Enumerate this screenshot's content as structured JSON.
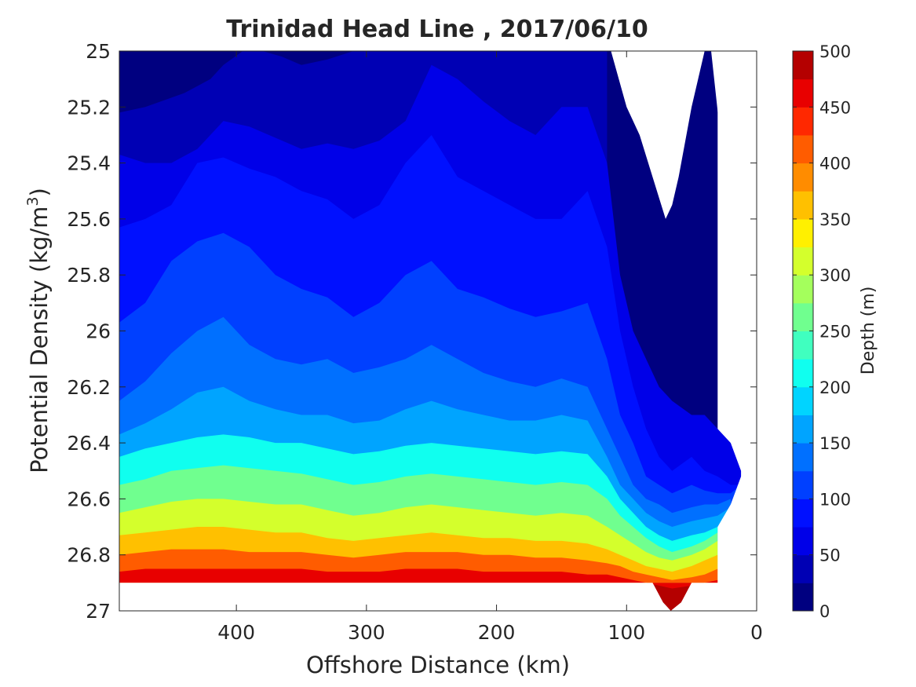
{
  "chart_data": {
    "type": "contour",
    "title": "Trinidad Head Line , 2017/06/10",
    "xlabel": "Offshore Distance (km)",
    "ylabel": "Potential Density (kg/m",
    "ylabel_sup": "3",
    "ylabel_end": ")",
    "xlim": [
      490,
      0
    ],
    "ylim": [
      25,
      27
    ],
    "x_reversed": true,
    "y_reversed": true,
    "x_ticks": [
      "400",
      "300",
      "200",
      "100",
      "0"
    ],
    "x_tick_values": [
      400,
      300,
      200,
      100,
      0
    ],
    "y_ticks": [
      "25",
      "25.2",
      "25.4",
      "25.6",
      "25.8",
      "26",
      "26.2",
      "26.4",
      "26.6",
      "26.8",
      "27"
    ],
    "y_tick_values": [
      25,
      25.2,
      25.4,
      25.6,
      25.8,
      26,
      26.2,
      26.4,
      26.6,
      26.8,
      27
    ],
    "colorbar": {
      "label": "Depth (m)",
      "range": [
        0,
        500
      ],
      "ticks": [
        "0",
        "50",
        "100",
        "150",
        "200",
        "250",
        "300",
        "350",
        "400",
        "450",
        "500"
      ],
      "tick_values": [
        0,
        50,
        100,
        150,
        200,
        250,
        300,
        350,
        400,
        450,
        500
      ],
      "level_step": 25,
      "colormap": "jet",
      "colors": [
        "#000080",
        "#0000b4",
        "#0000e8",
        "#0010ff",
        "#0040ff",
        "#0070ff",
        "#00a4ff",
        "#00d4ff",
        "#10ffef",
        "#40ffbf",
        "#70ff8f",
        "#a4ff5c",
        "#d4ff2c",
        "#fff000",
        "#ffc000",
        "#ff8c00",
        "#ff5c00",
        "#ff2800",
        "#e80000",
        "#b40000"
      ]
    },
    "grid": false,
    "bottom_contour_limit": 26.9,
    "contour_levels": [
      {
        "value": 25,
        "x": [
          490,
          470,
          440,
          420,
          410,
          395,
          380,
          365,
          350,
          330,
          310,
          290,
          270,
          250,
          230,
          210,
          190,
          170,
          150,
          130,
          115
        ],
        "y": [
          25.22,
          25.2,
          25.15,
          25.1,
          25.05,
          25.0,
          25.0,
          25.02,
          25.05,
          25.03,
          25.0,
          25.0,
          25.0,
          25.0,
          25.0,
          25.0,
          25.0,
          25.0,
          25.0,
          25.0,
          25.0
        ]
      },
      {
        "value": 50,
        "x": [
          490,
          470,
          450,
          430,
          410,
          390,
          370,
          350,
          330,
          310,
          290,
          270,
          250,
          230,
          210,
          190,
          170,
          150,
          130,
          115,
          105,
          95,
          85,
          75,
          65,
          50,
          40,
          30,
          20,
          12
        ],
        "y": [
          25.37,
          25.4,
          25.4,
          25.35,
          25.25,
          25.27,
          25.31,
          25.35,
          25.33,
          25.35,
          25.32,
          25.25,
          25.05,
          25.1,
          25.18,
          25.25,
          25.3,
          25.2,
          25.2,
          25.4,
          25.8,
          26.0,
          26.1,
          26.2,
          26.25,
          26.3,
          26.3,
          26.35,
          26.4,
          26.5
        ]
      },
      {
        "value": 75,
        "x": [
          490,
          470,
          450,
          430,
          410,
          390,
          370,
          350,
          330,
          310,
          290,
          270,
          250,
          230,
          210,
          190,
          170,
          150,
          130,
          115,
          105,
          95,
          85,
          75,
          65,
          50,
          40,
          30,
          20,
          12
        ],
        "y": [
          25.63,
          25.6,
          25.55,
          25.4,
          25.38,
          25.42,
          25.45,
          25.5,
          25.53,
          25.6,
          25.55,
          25.4,
          25.3,
          25.45,
          25.5,
          25.55,
          25.6,
          25.6,
          25.5,
          25.7,
          26.0,
          26.2,
          26.35,
          26.45,
          26.5,
          26.45,
          26.5,
          26.52,
          26.55,
          26.55
        ]
      },
      {
        "value": 100,
        "x": [
          490,
          470,
          450,
          430,
          410,
          390,
          370,
          350,
          330,
          310,
          290,
          270,
          250,
          230,
          210,
          190,
          170,
          150,
          130,
          115,
          105,
          95,
          85,
          75,
          65,
          50,
          40,
          30,
          20,
          12
        ],
        "y": [
          25.97,
          25.9,
          25.75,
          25.68,
          25.65,
          25.7,
          25.8,
          25.85,
          25.88,
          25.95,
          25.9,
          25.8,
          25.75,
          25.85,
          25.88,
          25.92,
          25.95,
          25.93,
          25.9,
          26.1,
          26.3,
          26.4,
          26.52,
          26.55,
          26.58,
          26.55,
          26.57,
          26.58,
          26.58,
          26.55
        ]
      },
      {
        "value": 125,
        "x": [
          490,
          470,
          450,
          430,
          410,
          390,
          370,
          350,
          330,
          310,
          290,
          270,
          250,
          230,
          210,
          190,
          170,
          150,
          130,
          115,
          105,
          95,
          85,
          75,
          65,
          50,
          40,
          30,
          20
        ],
        "y": [
          26.25,
          26.18,
          26.08,
          26.0,
          25.95,
          26.05,
          26.1,
          26.12,
          26.1,
          26.15,
          26.13,
          26.1,
          26.05,
          26.1,
          26.15,
          26.18,
          26.2,
          26.17,
          26.2,
          26.35,
          26.45,
          26.55,
          26.6,
          26.62,
          26.65,
          26.63,
          26.62,
          26.62,
          26.6
        ]
      },
      {
        "value": 150,
        "x": [
          490,
          470,
          450,
          430,
          410,
          390,
          370,
          350,
          330,
          310,
          290,
          270,
          250,
          230,
          210,
          190,
          170,
          150,
          130,
          115,
          105,
          95,
          85,
          75,
          65,
          50,
          40,
          30,
          20
        ],
        "y": [
          26.37,
          26.33,
          26.28,
          26.22,
          26.2,
          26.25,
          26.28,
          26.3,
          26.3,
          26.33,
          26.32,
          26.28,
          26.25,
          26.28,
          26.3,
          26.32,
          26.32,
          26.3,
          26.32,
          26.45,
          26.55,
          26.6,
          26.65,
          26.68,
          26.7,
          26.68,
          26.67,
          26.66,
          26.63
        ]
      },
      {
        "value": 200,
        "x": [
          490,
          470,
          450,
          430,
          410,
          390,
          370,
          350,
          330,
          310,
          290,
          270,
          250,
          230,
          210,
          190,
          170,
          150,
          130,
          115,
          105,
          95,
          85,
          75,
          65,
          50,
          40,
          30
        ],
        "y": [
          26.45,
          26.42,
          26.4,
          26.38,
          26.37,
          26.38,
          26.4,
          26.4,
          26.42,
          26.44,
          26.43,
          26.41,
          26.4,
          26.41,
          26.42,
          26.43,
          26.44,
          26.43,
          26.44,
          26.52,
          26.6,
          26.65,
          26.7,
          26.73,
          26.75,
          26.73,
          26.72,
          26.7
        ]
      },
      {
        "value": 250,
        "x": [
          490,
          470,
          450,
          430,
          410,
          390,
          370,
          350,
          330,
          310,
          290,
          270,
          250,
          230,
          210,
          190,
          170,
          150,
          130,
          115,
          105,
          95,
          85,
          75,
          65,
          50,
          40,
          30
        ],
        "y": [
          26.55,
          26.53,
          26.5,
          26.49,
          26.48,
          26.49,
          26.5,
          26.51,
          26.53,
          26.55,
          26.54,
          26.52,
          26.51,
          26.52,
          26.53,
          26.54,
          26.55,
          26.54,
          26.55,
          26.6,
          26.66,
          26.7,
          26.74,
          26.77,
          26.79,
          26.77,
          26.75,
          26.72
        ]
      },
      {
        "value": 300,
        "x": [
          490,
          470,
          450,
          430,
          410,
          390,
          370,
          350,
          330,
          310,
          290,
          270,
          250,
          230,
          210,
          190,
          170,
          150,
          130,
          115,
          105,
          95,
          85,
          75,
          65,
          50,
          40,
          30
        ],
        "y": [
          26.65,
          26.63,
          26.61,
          26.6,
          26.6,
          26.61,
          26.62,
          26.62,
          26.64,
          26.66,
          26.65,
          26.63,
          26.62,
          26.63,
          26.64,
          26.65,
          26.66,
          26.65,
          26.66,
          26.7,
          26.73,
          26.76,
          26.79,
          26.81,
          26.82,
          26.8,
          26.78,
          26.75
        ]
      },
      {
        "value": 350,
        "x": [
          490,
          470,
          450,
          430,
          410,
          390,
          370,
          350,
          330,
          310,
          290,
          270,
          250,
          230,
          210,
          190,
          170,
          150,
          130,
          115,
          105,
          95,
          85,
          75,
          65,
          50,
          40,
          30
        ],
        "y": [
          26.73,
          26.72,
          26.71,
          26.7,
          26.7,
          26.71,
          26.72,
          26.72,
          26.74,
          26.75,
          26.74,
          26.73,
          26.72,
          26.73,
          26.74,
          26.74,
          26.75,
          26.75,
          26.76,
          26.78,
          26.8,
          26.82,
          26.84,
          26.85,
          26.86,
          26.84,
          26.82,
          26.8
        ]
      },
      {
        "value": 400,
        "x": [
          490,
          470,
          450,
          430,
          410,
          390,
          370,
          350,
          330,
          310,
          290,
          270,
          250,
          230,
          210,
          190,
          170,
          150,
          130,
          115,
          105,
          95,
          85,
          75,
          65,
          50,
          40,
          30
        ],
        "y": [
          26.8,
          26.79,
          26.78,
          26.78,
          26.78,
          26.79,
          26.79,
          26.79,
          26.8,
          26.81,
          26.8,
          26.79,
          26.79,
          26.79,
          26.8,
          26.8,
          26.81,
          26.81,
          26.82,
          26.83,
          26.84,
          26.86,
          26.87,
          26.88,
          26.89,
          26.88,
          26.87,
          26.85
        ]
      },
      {
        "value": 450,
        "x": [
          490,
          470,
          450,
          430,
          410,
          390,
          370,
          350,
          330,
          310,
          290,
          270,
          250,
          230,
          210,
          190,
          170,
          150,
          130,
          115,
          105,
          95,
          85,
          75,
          65,
          50,
          40,
          30
        ],
        "y": [
          26.86,
          26.85,
          26.85,
          26.85,
          26.85,
          26.85,
          26.85,
          26.85,
          26.86,
          26.86,
          26.86,
          26.85,
          26.85,
          26.85,
          26.86,
          26.86,
          26.86,
          26.86,
          26.87,
          26.87,
          26.88,
          26.89,
          26.9,
          26.91,
          26.92,
          26.91,
          26.9,
          26.89
        ]
      }
    ],
    "blank_regions": [
      {
        "name": "top-right-notch",
        "x": [
          112,
          100,
          90,
          80,
          70,
          65,
          60,
          50,
          40
        ],
        "y": [
          25.0,
          25.2,
          25.3,
          25.45,
          25.6,
          25.55,
          25.45,
          25.2,
          25.0
        ]
      },
      {
        "name": "right-edge",
        "x": [
          35,
          28,
          20,
          15,
          12,
          10
        ],
        "y": [
          25.0,
          25.3,
          25.6,
          25.8,
          26.0,
          26.5
        ]
      }
    ]
  }
}
